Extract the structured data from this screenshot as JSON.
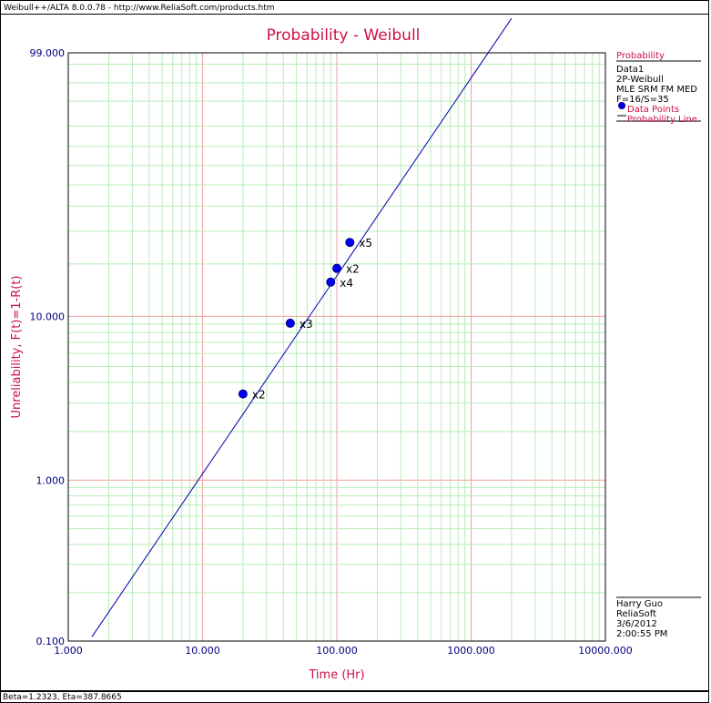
{
  "window": {
    "title": "Weibull++/ALTA 8.0.0.78 - http://www.ReliaSoft.com/products.htm"
  },
  "status": {
    "text": "Beta=1.2323, Eta=387.8665"
  },
  "legend": {
    "header": "Probability",
    "dataset": "Data1",
    "model": "2P-Weibull",
    "method": "MLE SRM FM MED",
    "counts": "F=16/S=35",
    "points_label": "Data Points",
    "line_label": "Probability Line"
  },
  "footer": {
    "user": "Harry Guo",
    "company": "ReliaSoft",
    "date": "3/6/2012",
    "time": "2:00:55 PM"
  },
  "colors": {
    "title": "#cc1144",
    "axis_text": "#000080",
    "points": "#0000ee",
    "line": "#0000aa",
    "major_grid": "#f0a0a0",
    "minor_grid": "#b8ecb8"
  },
  "chart_data": {
    "type": "scatter",
    "title": "Probability - Weibull",
    "xlabel": "Time (Hr)",
    "ylabel": "Unreliability, F(t)=1-R(t)",
    "x_scale": "log",
    "y_scale": "weibull",
    "xlim": [
      1,
      10000
    ],
    "ylim": [
      0.1,
      99
    ],
    "x_ticks": [
      "1.000",
      "10.000",
      "100.000",
      "1000.000",
      "10000.000"
    ],
    "y_ticks": [
      "0.100",
      "1.000",
      "10.000",
      "99.000"
    ],
    "grid": true,
    "legend_position": "right",
    "series": [
      {
        "name": "Data Points",
        "points": [
          {
            "x": 20,
            "y": 3.4,
            "label": "x2"
          },
          {
            "x": 45,
            "y": 9.1,
            "label": "x3"
          },
          {
            "x": 90,
            "y": 15.8,
            "label": "x4"
          },
          {
            "x": 100,
            "y": 18.9,
            "label": "x2"
          },
          {
            "x": 125,
            "y": 26.2,
            "label": "x5"
          }
        ]
      },
      {
        "name": "Probability Line",
        "beta": 1.2323,
        "eta": 387.8665,
        "x_range": [
          1.5,
          2000
        ]
      }
    ]
  }
}
